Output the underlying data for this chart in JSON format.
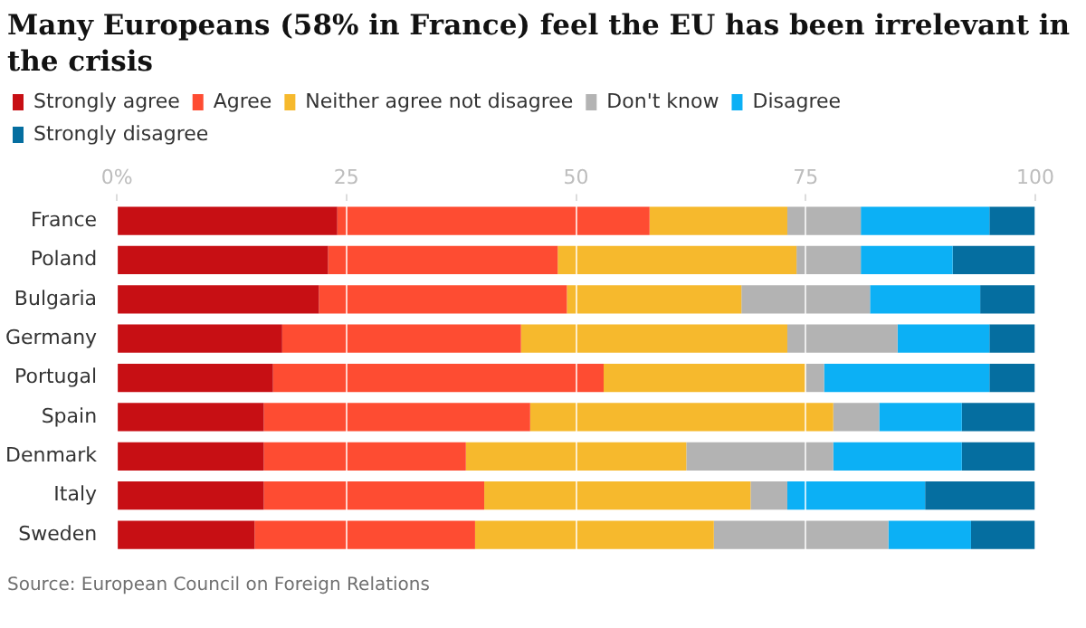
{
  "chart_data": {
    "type": "bar",
    "orientation": "horizontal",
    "stacked": true,
    "title": "Many Europeans (58% in France) feel the EU has been irrelevant in the crisis",
    "categories": [
      "France",
      "Poland",
      "Bulgaria",
      "Germany",
      "Portugal",
      "Spain",
      "Denmark",
      "Italy",
      "Sweden"
    ],
    "series": [
      {
        "name": "Strongly agree",
        "color": "#c70f14",
        "values": [
          24,
          23,
          22,
          18,
          17,
          16,
          16,
          16,
          15
        ]
      },
      {
        "name": "Agree",
        "color": "#fe4c32",
        "values": [
          34,
          25,
          27,
          26,
          36,
          29,
          22,
          24,
          24
        ]
      },
      {
        "name": "Neither agree not disagree",
        "color": "#f6b92d",
        "values": [
          15,
          26,
          19,
          29,
          22,
          33,
          24,
          29,
          26
        ]
      },
      {
        "name": "Don't know",
        "color": "#b3b3b3",
        "values": [
          8,
          7,
          14,
          12,
          2,
          5,
          16,
          4,
          19
        ]
      },
      {
        "name": "Disagree",
        "color": "#0cb0f5",
        "values": [
          14,
          10,
          12,
          10,
          18,
          9,
          14,
          15,
          9
        ]
      },
      {
        "name": "Strongly disagree",
        "color": "#056ea0",
        "values": [
          5,
          9,
          6,
          5,
          5,
          8,
          8,
          12,
          7
        ]
      }
    ],
    "xlim": [
      0,
      100
    ],
    "xticks": [
      {
        "value": 0,
        "label": "0%"
      },
      25,
      50,
      75,
      100
    ],
    "grid": "x",
    "legend": "top left",
    "annotations": [
      "Source: European Council on Foreign Relations"
    ]
  }
}
